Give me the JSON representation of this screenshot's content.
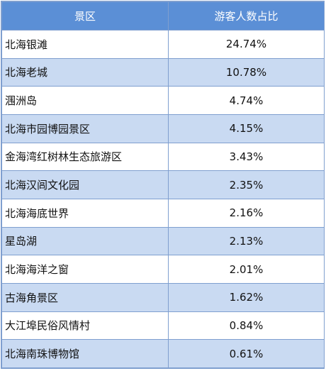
{
  "table": {
    "headers": {
      "area": "景区",
      "share": "游客人数占比"
    },
    "rows": [
      {
        "area": "北海银滩",
        "share": "24.74%"
      },
      {
        "area": "北海老城",
        "share": "10.78%"
      },
      {
        "area": "涠洲岛",
        "share": "4.74%"
      },
      {
        "area": "北海市园博园景区",
        "share": "4.15%"
      },
      {
        "area": "金海湾红树林生态旅游区",
        "share": "3.43%"
      },
      {
        "area": "北海汉闾文化园",
        "share": "2.35%"
      },
      {
        "area": "北海海底世界",
        "share": "2.16%"
      },
      {
        "area": "星岛湖",
        "share": "2.13%"
      },
      {
        "area": "北海海洋之窗",
        "share": "2.01%"
      },
      {
        "area": "古海角景区",
        "share": "1.62%"
      },
      {
        "area": "大江埠民俗风情村",
        "share": "0.84%"
      },
      {
        "area": "北海南珠博物馆",
        "share": "0.61%"
      }
    ]
  },
  "colors": {
    "header_bg": "#5b8fd6",
    "row_alt_bg": "#c9daf2",
    "border": "#7f9fcf"
  }
}
